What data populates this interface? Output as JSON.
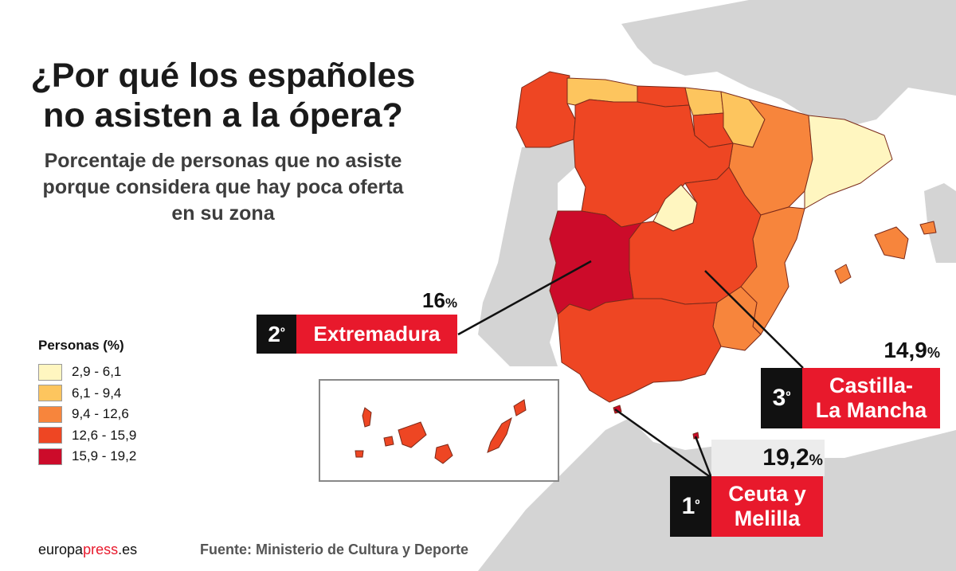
{
  "title": "¿Por qué los españoles no asisten a la ópera?",
  "subtitle": "Porcentaje de personas que no asiste porque considera que hay poca oferta en su zona",
  "legend": {
    "title": "Personas (%)",
    "items": [
      {
        "label": "2,9 - 6,1",
        "color": "#fff6c0"
      },
      {
        "label": "6,1 - 9,4",
        "color": "#fdc55e"
      },
      {
        "label": "9,4 - 12,6",
        "color": "#f7853c"
      },
      {
        "label": "12,6 - 15,9",
        "color": "#ee4623"
      },
      {
        "label": "15,9 - 19,2",
        "color": "#cc0b2a"
      }
    ]
  },
  "callouts": {
    "first": {
      "rank": "1",
      "ordinal": "º",
      "region_line1": "Ceuta y",
      "region_line2": "Melilla",
      "value": "19,2",
      "unit": "%"
    },
    "second": {
      "rank": "2",
      "ordinal": "º",
      "region": "Extremadura",
      "value": "16",
      "unit": "%"
    },
    "third": {
      "rank": "3",
      "ordinal": "º",
      "region_line1": "Castilla-",
      "region_line2": "La Mancha",
      "value": "14,9",
      "unit": "%"
    }
  },
  "footer": {
    "logo_part1": "europa",
    "logo_part2": "press",
    "logo_part3": ".es",
    "source": "Fuente: Ministerio de Cultura y Deporte"
  },
  "colors": {
    "land_gray": "#d3d3d3",
    "highlight_red": "#e8192c",
    "rank_black": "#111111"
  }
}
